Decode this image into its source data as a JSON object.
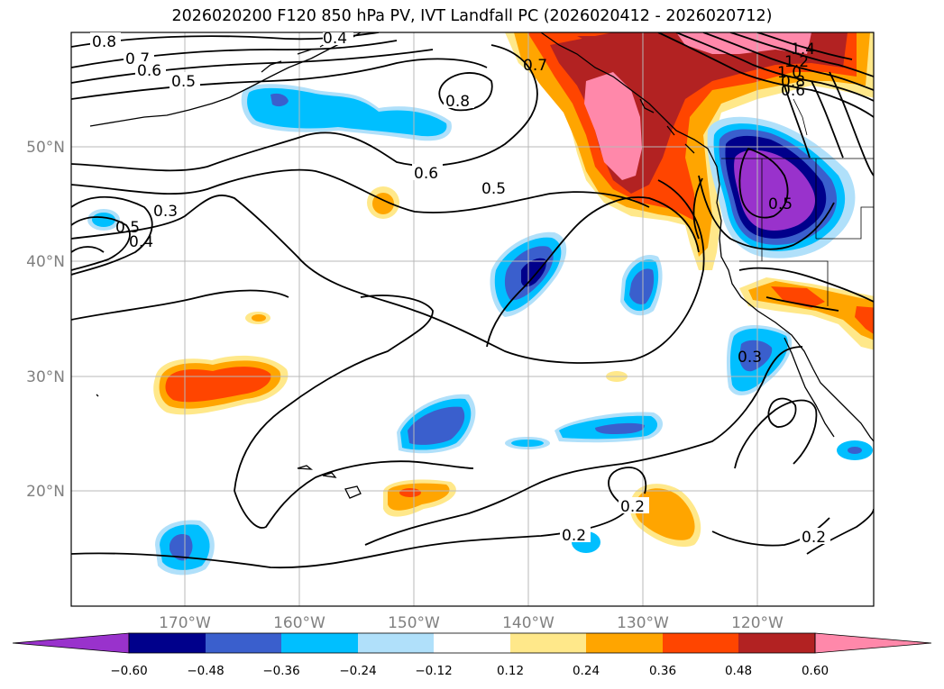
{
  "title": "2026020200 F120 850 hPa PV, IVT Landfall PC (2026020412 - 2026020712)",
  "map": {
    "lat_labels": [
      "50°N",
      "40°N",
      "30°N",
      "20°N"
    ],
    "lon_labels": [
      "170°W",
      "160°W",
      "150°W",
      "140°W",
      "130°W",
      "120°W"
    ],
    "contour_labels": [
      "0.8",
      "0.7",
      "0.6",
      "0.5",
      "0.4",
      "0.8",
      "0.7",
      "0.6",
      "0.5",
      "0.3",
      "0.5",
      "0.4",
      "1.4",
      "1.2",
      "1.0",
      "0.8",
      "0.6",
      "0.5",
      "0.3",
      "0.2",
      "0.2",
      "0.2"
    ]
  },
  "colorbar": {
    "ticks": [
      "−0.60",
      "−0.48",
      "−0.36",
      "−0.24",
      "−0.12",
      "0.12",
      "0.24",
      "0.36",
      "0.48",
      "0.60"
    ],
    "colors": [
      "#9932cc",
      "#00008b",
      "#3a5fcd",
      "#00bfff",
      "#b0e0fa",
      "#ffffff",
      "#ffe88a",
      "#ffa500",
      "#ff4500",
      "#b22222",
      "#ff88aa",
      "#ff88aa"
    ]
  }
}
